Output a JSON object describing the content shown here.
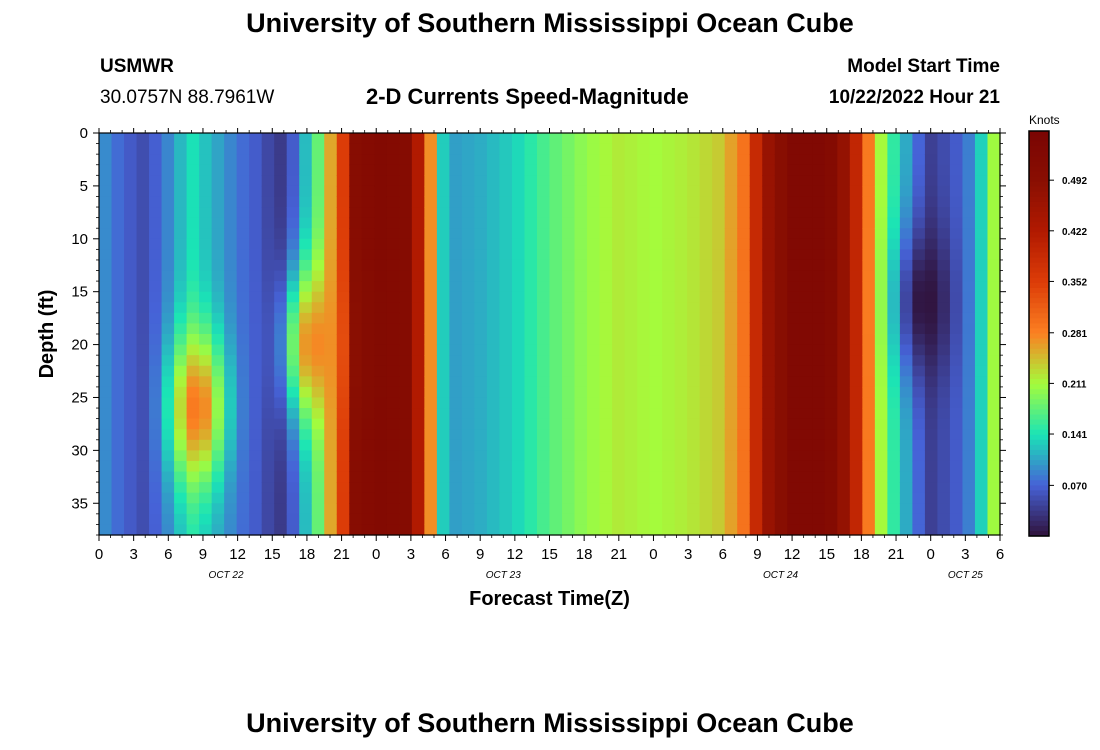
{
  "header": {
    "title": "University of Southern Mississippi Ocean Cube",
    "station_name": "USMWR",
    "station_coords": "30.0757N  88.7961W",
    "plot_title": "2-D Currents Speed-Magnitude",
    "model_start_label": "Model Start Time",
    "model_start_value": "10/22/2022 Hour 21"
  },
  "footer": {
    "title": "University of Southern Mississippi Ocean Cube"
  },
  "chart_data": {
    "type": "heatmap",
    "xlabel": "Forecast Time(Z)",
    "ylabel": "Depth (ft)",
    "x_range_hours": [
      0,
      78
    ],
    "y_range_ft": [
      0,
      38
    ],
    "y_inverted": true,
    "x_tick_labels": [
      "0",
      "3",
      "6",
      "9",
      "12",
      "15",
      "18",
      "21",
      "0",
      "3",
      "6",
      "9",
      "12",
      "15",
      "18",
      "21",
      "0",
      "3",
      "6",
      "9",
      "12",
      "15",
      "18",
      "21",
      "0",
      "3",
      "6"
    ],
    "y_ticks": [
      0,
      5,
      10,
      15,
      20,
      25,
      30,
      35
    ],
    "day_labels": [
      {
        "label": "OCT 22",
        "hour": 11
      },
      {
        "label": "OCT 23",
        "hour": 35
      },
      {
        "label": "OCT 24",
        "hour": 59
      },
      {
        "label": "OCT 25",
        "hour": 75
      }
    ],
    "colorbar": {
      "label": "Knots",
      "min": 0,
      "max": 0.56,
      "ticks": [
        0.07,
        0.141,
        0.211,
        0.281,
        0.352,
        0.422,
        0.492
      ],
      "tick_labels": [
        "0.070",
        "0.141",
        "0.211",
        "0.281",
        "0.352",
        "0.422",
        "0.492"
      ]
    },
    "speed_by_hour_knots": [
      [
        0,
        0.1
      ],
      [
        2,
        0.07
      ],
      [
        4,
        0.05
      ],
      [
        6,
        0.09
      ],
      [
        8,
        0.14
      ],
      [
        10,
        0.11
      ],
      [
        12,
        0.08
      ],
      [
        14,
        0.06
      ],
      [
        15.5,
        0.03
      ],
      [
        17,
        0.07
      ],
      [
        19,
        0.18
      ],
      [
        21,
        0.33
      ],
      [
        22,
        0.5
      ],
      [
        24,
        0.52
      ],
      [
        27,
        0.51
      ],
      [
        28.5,
        0.3
      ],
      [
        30,
        0.1
      ],
      [
        33,
        0.11
      ],
      [
        36,
        0.13
      ],
      [
        39,
        0.17
      ],
      [
        42,
        0.2
      ],
      [
        45,
        0.22
      ],
      [
        48,
        0.21
      ],
      [
        51,
        0.22
      ],
      [
        54,
        0.24
      ],
      [
        56,
        0.3
      ],
      [
        57.5,
        0.45
      ],
      [
        60,
        0.53
      ],
      [
        63,
        0.53
      ],
      [
        65,
        0.45
      ],
      [
        67,
        0.25
      ],
      [
        69,
        0.14
      ],
      [
        71,
        0.07
      ],
      [
        72,
        0.04
      ],
      [
        74,
        0.06
      ],
      [
        76,
        0.1
      ],
      [
        77,
        0.18
      ],
      [
        78,
        0.24
      ]
    ],
    "local_features": [
      {
        "hour": 8.5,
        "depth_ft": 26,
        "peak_knots": 0.29,
        "note": "subsurface maximum"
      },
      {
        "hour": 18.5,
        "depth_ft": 20,
        "peak_knots": 0.28,
        "note": "subsurface maximum"
      },
      {
        "hour": 71.5,
        "depth_ft": 16,
        "peak_knots": 0.0,
        "note": "minimum"
      }
    ],
    "colors": {
      "0.00": "#30123b",
      "0.07": "#4662d7",
      "0.14": "#1ae4b6",
      "0.21": "#a4fc3c",
      "0.28": "#fb8022",
      "0.35": "#dd3d08",
      "0.42": "#b21a01",
      "0.49": "#8a0f02",
      "0.56": "#7a0403"
    }
  }
}
